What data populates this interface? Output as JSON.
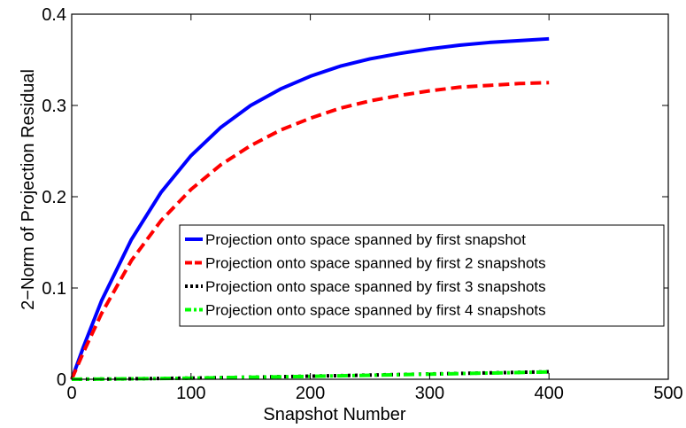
{
  "chart_data": {
    "type": "line",
    "title": "",
    "xlabel": "Snapshot Number",
    "ylabel": "2−Norm of Projection Residual",
    "xlim": [
      0,
      500
    ],
    "ylim": [
      0,
      0.4
    ],
    "xticks": [
      0,
      100,
      200,
      300,
      400,
      500
    ],
    "xtick_labels": [
      "0",
      "100",
      "200",
      "300",
      "400",
      "500"
    ],
    "yticks": [
      0,
      0.1,
      0.2,
      0.3,
      0.4
    ],
    "ytick_labels": [
      "0",
      "0.1",
      "0.2",
      "0.3",
      "0.4"
    ],
    "grid": false,
    "legend_position": "lower-right",
    "x": [
      0,
      10,
      25,
      50,
      75,
      100,
      125,
      150,
      175,
      200,
      225,
      250,
      275,
      300,
      325,
      350,
      375,
      400
    ],
    "series": [
      {
        "name": "Projection onto space spanned by first snapshot",
        "color": "#0000ff",
        "dash": "solid",
        "values": [
          0.0,
          0.036,
          0.086,
          0.153,
          0.205,
          0.245,
          0.276,
          0.3,
          0.318,
          0.332,
          0.343,
          0.351,
          0.357,
          0.362,
          0.366,
          0.369,
          0.371,
          0.373
        ]
      },
      {
        "name": "Projection onto space spanned by first 2 snapshots",
        "color": "#ff0000",
        "dash": "dashed",
        "values": [
          0.0,
          0.03,
          0.072,
          0.13,
          0.174,
          0.208,
          0.235,
          0.256,
          0.273,
          0.286,
          0.297,
          0.305,
          0.311,
          0.316,
          0.32,
          0.322,
          0.324,
          0.325
        ]
      },
      {
        "name": "Projection onto space spanned by first 3 snapshots",
        "color": "#000000",
        "dash": "dotted",
        "values": [
          0.0,
          0.0001,
          0.0002,
          0.0005,
          0.0009,
          0.0013,
          0.0018,
          0.0023,
          0.0028,
          0.0034,
          0.004,
          0.0046,
          0.0052,
          0.0058,
          0.0064,
          0.007,
          0.0076,
          0.0082
        ]
      },
      {
        "name": "Projection onto space spanned by first 4 snapshots",
        "color": "#00ff00",
        "dash": "dashdot",
        "values": [
          0.0,
          0.0001,
          0.0002,
          0.0005,
          0.0008,
          0.0012,
          0.0017,
          0.0022,
          0.0027,
          0.0032,
          0.0038,
          0.0044,
          0.005,
          0.0056,
          0.0062,
          0.0068,
          0.0074,
          0.008
        ]
      }
    ]
  }
}
